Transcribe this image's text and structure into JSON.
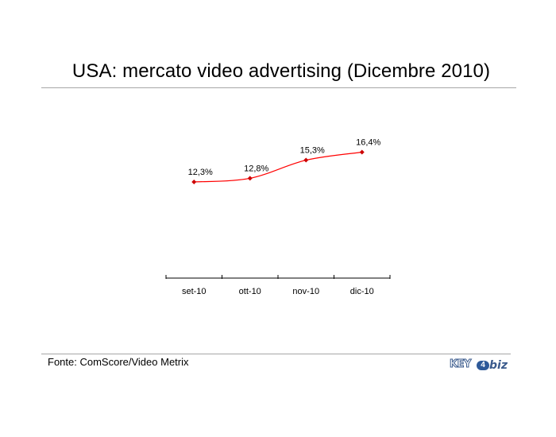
{
  "title": "USA: mercato video advertising (Dicembre 2010)",
  "source": "Fonte: ComScore/Video Metrix",
  "logo": {
    "key": "KEY",
    "number": "4",
    "biz": "biz"
  },
  "colors": {
    "line": "#ff0000",
    "marker": "#cc0000",
    "axis": "#000000",
    "rule": "#a6a6a6",
    "logo": "#3a5a8c"
  },
  "chart_data": {
    "type": "line",
    "categories": [
      "set-10",
      "ott-10",
      "nov-10",
      "dic-10"
    ],
    "values": [
      12.3,
      12.8,
      15.3,
      16.4
    ],
    "data_labels": [
      "12,3%",
      "12,8%",
      "15,3%",
      "16,4%"
    ],
    "smooth": true,
    "grid": false,
    "legend": "none"
  }
}
